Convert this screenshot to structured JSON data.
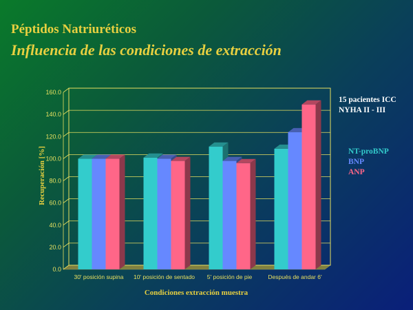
{
  "slide": {
    "title": "Péptidos Natriuréticos",
    "subtitle": "Influencia de las condiciones de extracción",
    "note_line1": "15 pacientes ICC",
    "note_line2": "NYHA II - III"
  },
  "colors": {
    "title": "#e8d040",
    "axis_text": "#e8d040",
    "NT-proBNP": "#33cccc",
    "BNP": "#6688ff",
    "ANP": "#ff6688"
  },
  "chart_data": {
    "type": "bar",
    "categories": [
      "30' posición supina",
      "10' posición de sentado",
      "5' posición de pie",
      "Después de andar 6'"
    ],
    "series": [
      {
        "name": "NT-proBNP",
        "values": [
          100,
          101,
          111,
          109
        ]
      },
      {
        "name": "BNP",
        "values": [
          100,
          100,
          98,
          124
        ]
      },
      {
        "name": "ANP",
        "values": [
          100,
          98,
          96,
          149
        ]
      }
    ],
    "title": "",
    "xlabel": "Condiciones extracción muestra",
    "ylabel": "Recuperación [%]",
    "ylim": [
      0,
      160
    ],
    "yticks": [
      "0.0",
      "20.0",
      "40.0",
      "60.0",
      "80.0",
      "100.0",
      "120.0",
      "140.0",
      "160.0"
    ],
    "ytick_values": [
      0,
      20,
      40,
      60,
      80,
      100,
      120,
      140,
      160
    ],
    "grid": true,
    "legend_position": "right"
  }
}
